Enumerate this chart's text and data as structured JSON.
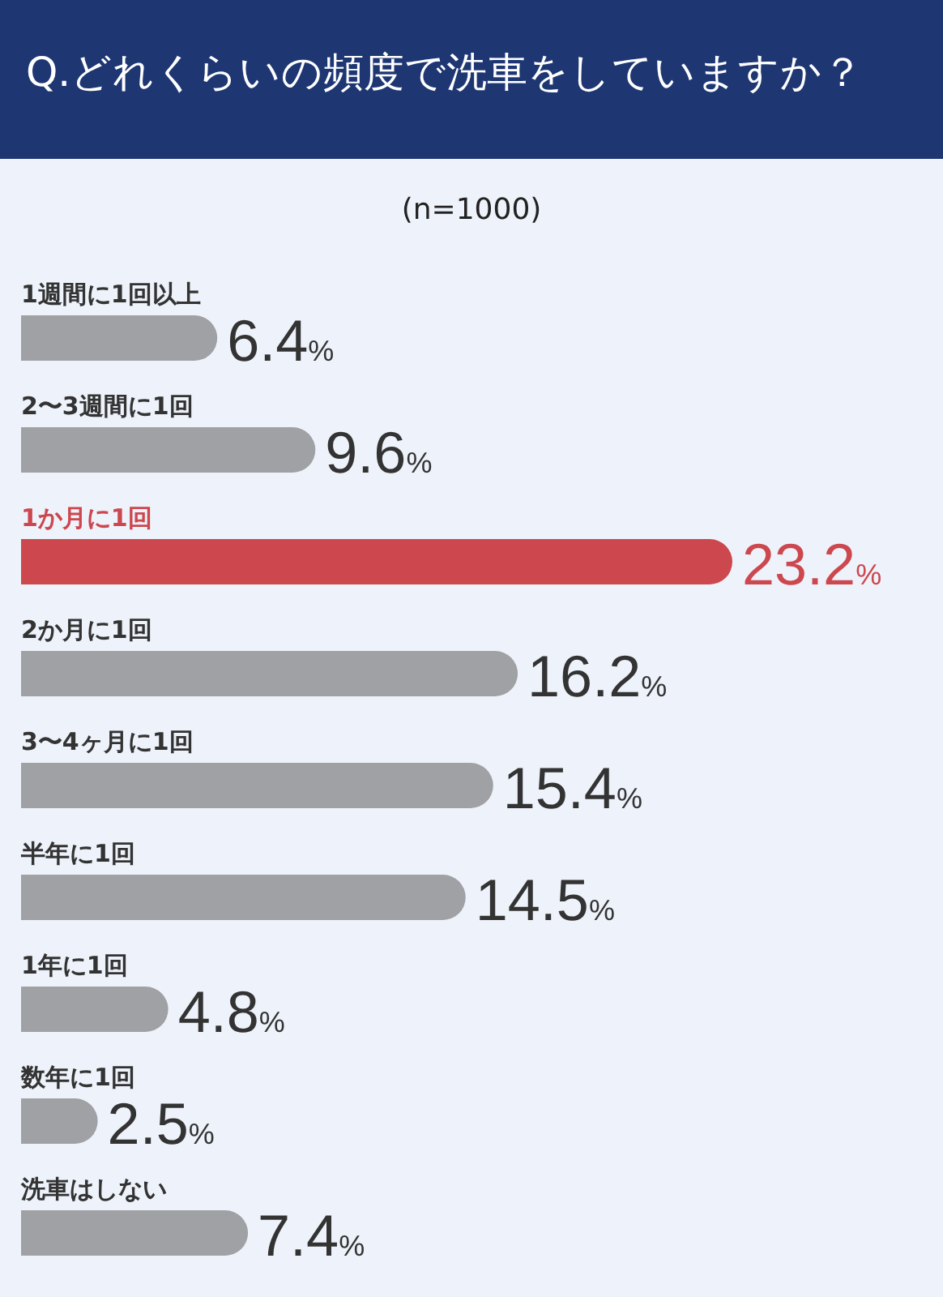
{
  "chart_data": {
    "type": "bar",
    "orientation": "horizontal",
    "title": "Q.どれくらいの頻度で洗車をしていますか？",
    "subtitle": "(n=1000)",
    "categories": [
      "1週間に1回以上",
      "2〜3週間に1回",
      "1か月に1回",
      "2か月に1回",
      "3〜4ヶ月に1回",
      "半年に1回",
      "1年に1回",
      "数年に1回",
      "洗車はしない"
    ],
    "values": [
      6.4,
      9.6,
      23.2,
      16.2,
      15.4,
      14.5,
      4.8,
      2.5,
      7.4
    ],
    "colors": [
      "#a0a1a5",
      "#a0a1a5",
      "#cd474e",
      "#a0a1a5",
      "#a0a1a5",
      "#a0a1a5",
      "#a0a1a5",
      "#a0a1a5",
      "#a0a1a5"
    ],
    "value_labels": [
      "6.4%",
      "9.6%",
      "23.2%",
      "16.2%",
      "15.4%",
      "14.5%",
      "4.8%",
      "2.5%",
      "7.4%"
    ],
    "tick_labels": "y"
  }
}
